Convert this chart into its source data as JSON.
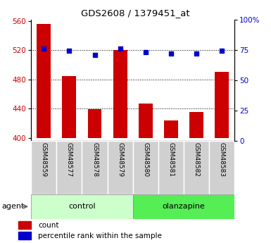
{
  "title": "GDS2608 / 1379451_at",
  "samples": [
    "GSM48559",
    "GSM48577",
    "GSM48578",
    "GSM48579",
    "GSM48580",
    "GSM48581",
    "GSM48582",
    "GSM48583"
  ],
  "counts": [
    556,
    485,
    439,
    520,
    447,
    424,
    436,
    490
  ],
  "percentiles": [
    76,
    74,
    71,
    76,
    73,
    72,
    72,
    74
  ],
  "bar_color": "#cc0000",
  "dot_color": "#0000cc",
  "ylim_left": [
    396,
    562
  ],
  "ylim_right": [
    0,
    100
  ],
  "yticks_left": [
    400,
    440,
    480,
    520,
    560
  ],
  "yticks_right": [
    0,
    25,
    50,
    75,
    100
  ],
  "grid_values": [
    440,
    480,
    520
  ],
  "left_tick_color": "#cc0000",
  "right_tick_color": "#0000cc",
  "legend_count_label": "count",
  "legend_percentile_label": "percentile rank within the sample",
  "agent_label": "agent",
  "bar_bottom": 400,
  "ctrl_color": "#ccffcc",
  "olan_color": "#55ee55",
  "sample_bg_color": "#d0d0d0"
}
